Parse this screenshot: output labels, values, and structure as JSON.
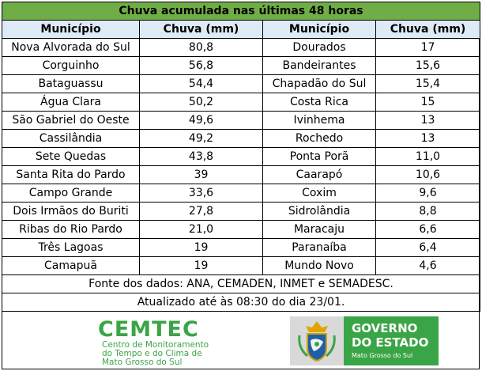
{
  "title": "Chuva acumulada nas últimas 48 horas",
  "headers": {
    "municipio": "Município",
    "chuva": "Chuva (mm)"
  },
  "rows": [
    {
      "m1": "Nova Alvorada do Sul",
      "v1": "80,8",
      "m2": "Dourados",
      "v2": "17"
    },
    {
      "m1": "Corguinho",
      "v1": "56,8",
      "m2": "Bandeirantes",
      "v2": "15,6"
    },
    {
      "m1": "Bataguassu",
      "v1": "54,4",
      "m2": "Chapadão do Sul",
      "v2": "15,4"
    },
    {
      "m1": "Água Clara",
      "v1": "50,2",
      "m2": "Costa Rica",
      "v2": "15"
    },
    {
      "m1": "São Gabriel do Oeste",
      "v1": "49,6",
      "m2": "Ivinhema",
      "v2": "13"
    },
    {
      "m1": "Cassilândia",
      "v1": "49,2",
      "m2": "Rochedo",
      "v2": "13"
    },
    {
      "m1": "Sete Quedas",
      "v1": "43,8",
      "m2": "Ponta Porã",
      "v2": "11,0"
    },
    {
      "m1": "Santa Rita do Pardo",
      "v1": "39",
      "m2": "Caarapó",
      "v2": "10,6"
    },
    {
      "m1": "Campo Grande",
      "v1": "33,6",
      "m2": "Coxim",
      "v2": "9,6"
    },
    {
      "m1": "Dois Irmãos do Buriti",
      "v1": "27,8",
      "m2": "Sidrolândia",
      "v2": "8,8"
    },
    {
      "m1": "Ribas do Rio Pardo",
      "v1": "21,0",
      "m2": "Maracaju",
      "v2": "6,6"
    },
    {
      "m1": "Três Lagoas",
      "v1": "19",
      "m2": "Paranaíba",
      "v2": "6,4"
    },
    {
      "m1": "Camapuã",
      "v1": "19",
      "m2": "Mundo Novo",
      "v2": "4,6"
    }
  ],
  "source": "Fonte dos dados: ANA, CEMADEN, INMET e SEMADESC.",
  "updated": "Atualizado até às 08:30 do dia 23/01.",
  "logo_cemtec": {
    "name": "CEMTEC",
    "line1": "Centro de Monitoramento",
    "line2": "do Tempo e do Clima de",
    "line3": "Mato Grosso do Sul"
  },
  "logo_gov": {
    "line1": "GOVERNO",
    "line2": "DO ESTADO",
    "line3": "Mato Grosso do Sul"
  },
  "colors": {
    "title_bg": "#70ad47",
    "header_bg": "#deeaf6",
    "brand_green": "#3aa546"
  }
}
